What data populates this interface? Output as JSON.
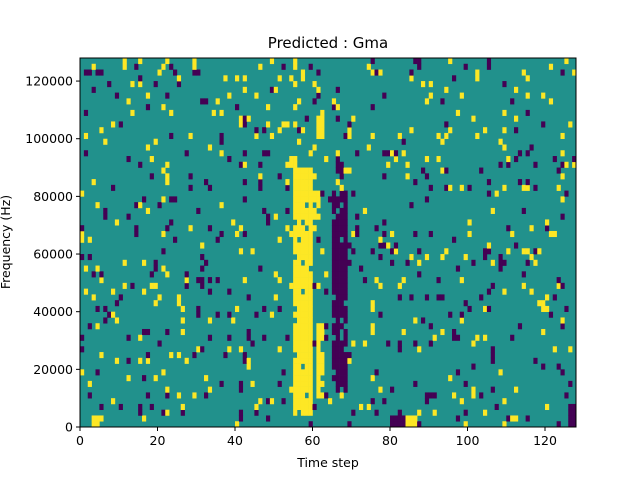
{
  "chart_data": {
    "type": "heatmap",
    "title": "Predicted : Gma",
    "xlabel": "Time step",
    "ylabel": "Frequency (Hz)",
    "xlim": [
      0,
      128
    ],
    "ylim": [
      0,
      128000
    ],
    "x_ticks": [
      "0",
      "20",
      "40",
      "60",
      "80",
      "100",
      "120"
    ],
    "y_ticks": [
      "0",
      "20000",
      "40000",
      "60000",
      "80000",
      "100000",
      "120000"
    ],
    "grid": false,
    "n_time_steps": 128,
    "n_freq_bins": 64,
    "colormap": [
      "#440154",
      "#21918c",
      "#fde725"
    ],
    "cell_value_levels": [
      "low",
      "mid",
      "high"
    ],
    "background_level": 1,
    "high_bands": [
      {
        "x_start": 55,
        "x_end": 60,
        "y_start": 4000,
        "y_end": 90000
      },
      {
        "x_start": 54,
        "x_end": 56,
        "y_start": 88000,
        "y_end": 94000
      },
      {
        "x_start": 60,
        "x_end": 62,
        "y_start": 72000,
        "y_end": 82000
      },
      {
        "x_start": 61,
        "x_end": 63,
        "y_start": 10000,
        "y_end": 36000
      },
      {
        "x_start": 61,
        "x_end": 63,
        "y_start": 100000,
        "y_end": 110000
      },
      {
        "x_start": 82,
        "x_end": 87,
        "y_start": 0,
        "y_end": 4000
      },
      {
        "x_start": 3,
        "x_end": 6,
        "y_start": 0,
        "y_end": 4000
      }
    ],
    "low_bands": [
      {
        "x_start": 65,
        "x_end": 69,
        "y_start": 12000,
        "y_end": 82000
      },
      {
        "x_start": 66,
        "x_end": 68,
        "y_start": 86000,
        "y_end": 94000
      },
      {
        "x_start": 80,
        "x_end": 84,
        "y_start": 0,
        "y_end": 4000
      },
      {
        "x_start": 89,
        "x_end": 92,
        "y_start": 8000,
        "y_end": 12000
      },
      {
        "x_start": 126,
        "x_end": 128,
        "y_start": 0,
        "y_end": 8000
      }
    ],
    "scatter_density": {
      "low": 0.045,
      "high": 0.045
    }
  }
}
